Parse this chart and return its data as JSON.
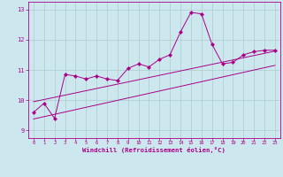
{
  "background_color": "#cce8ee",
  "grid_color": "#aacccc",
  "line_color": "#aa0088",
  "xlabel": "Windchill (Refroidissement éolien,°C)",
  "tick_color": "#aa0088",
  "ylim": [
    8.75,
    13.25
  ],
  "xlim": [
    -0.5,
    23.5
  ],
  "yticks": [
    9,
    10,
    11,
    12,
    13
  ],
  "xticks": [
    0,
    1,
    2,
    3,
    4,
    5,
    6,
    7,
    8,
    9,
    10,
    11,
    12,
    13,
    14,
    15,
    16,
    17,
    18,
    19,
    20,
    21,
    22,
    23
  ],
  "main_x": [
    0,
    1,
    2,
    3,
    4,
    5,
    6,
    7,
    8,
    9,
    10,
    11,
    12,
    13,
    14,
    15,
    16,
    17,
    18,
    19,
    20,
    21,
    22,
    23
  ],
  "main_y": [
    9.6,
    9.9,
    9.4,
    10.85,
    10.8,
    10.7,
    10.8,
    10.7,
    10.65,
    11.05,
    11.2,
    11.1,
    11.35,
    11.5,
    12.25,
    12.9,
    12.85,
    11.85,
    11.2,
    11.25,
    11.5,
    11.6,
    11.65,
    11.65
  ],
  "trend1_x": [
    0,
    23
  ],
  "trend1_y": [
    9.95,
    11.62
  ],
  "trend2_x": [
    0,
    23
  ],
  "trend2_y": [
    9.38,
    11.15
  ]
}
